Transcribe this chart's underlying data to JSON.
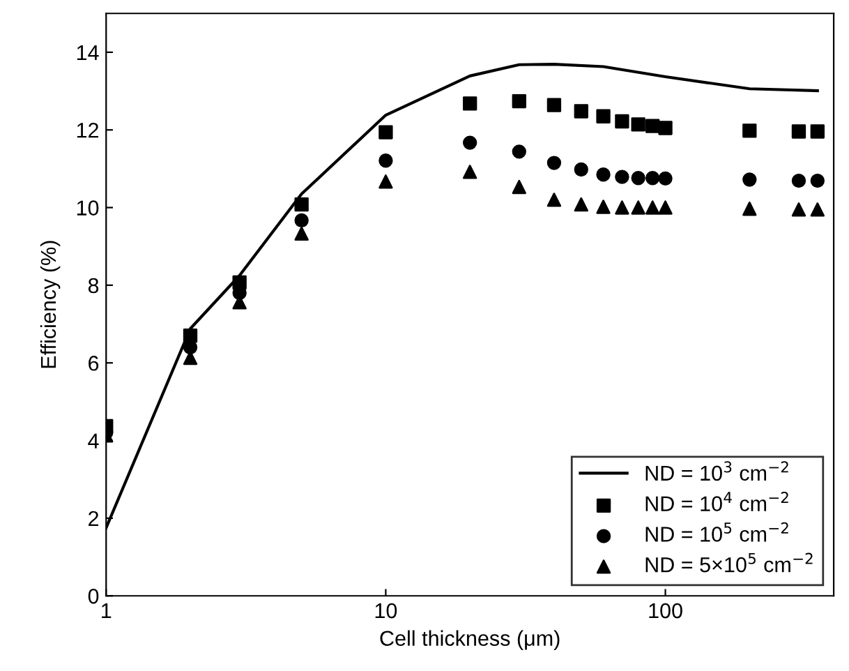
{
  "chart_data": {
    "type": "scatter",
    "xlabel": "Cell thickness (μm)",
    "ylabel": "Efficiency (%)",
    "log": "x",
    "xlim": [
      1,
      400
    ],
    "xticks": [
      1,
      10,
      100
    ],
    "ylim": [
      0,
      15
    ],
    "yticks": [
      0,
      2,
      4,
      6,
      8,
      10,
      12,
      14
    ],
    "grid": false,
    "legend": "bottom right",
    "series": [
      {
        "name": "ND = 10$^{3}$ cm$^{−2}$",
        "type": "line",
        "marker": "none",
        "line_style": "solid",
        "color": "#000000",
        "x": [
          1,
          2,
          3,
          5,
          10,
          20,
          30,
          40,
          60,
          100,
          200,
          350
        ],
        "values": [
          1.75,
          6.88,
          8.25,
          10.35,
          12.38,
          13.39,
          13.68,
          13.69,
          13.63,
          13.37,
          13.06,
          13.01
        ]
      },
      {
        "name": "ND = 10$^{4}$ cm$^{−2}$",
        "marker": "square",
        "color": "#000000",
        "x": [
          1,
          2,
          3,
          5,
          10,
          20,
          30,
          40,
          50,
          60,
          70,
          80,
          90,
          100,
          200,
          300,
          350
        ],
        "values": [
          4.37,
          6.7,
          8.07,
          10.08,
          11.94,
          12.68,
          12.74,
          12.64,
          12.48,
          12.35,
          12.22,
          12.14,
          12.1,
          12.05,
          11.98,
          11.96,
          11.96
        ]
      },
      {
        "name": "ND = 10$^{5}$ cm$^{−2}$",
        "marker": "circle",
        "color": "#000000",
        "x": [
          1,
          2,
          3,
          5,
          10,
          20,
          30,
          40,
          50,
          60,
          70,
          80,
          90,
          100,
          200,
          300,
          350
        ],
        "values": [
          4.2,
          6.4,
          7.8,
          9.67,
          11.21,
          11.67,
          11.44,
          11.15,
          10.98,
          10.85,
          10.79,
          10.76,
          10.76,
          10.75,
          10.72,
          10.69,
          10.69
        ]
      },
      {
        "name": "ND = 5×10$^{5}$ cm$^{−2}$",
        "marker": "triangle",
        "color": "#000000",
        "x": [
          1,
          2,
          3,
          5,
          10,
          20,
          30,
          40,
          50,
          60,
          70,
          80,
          90,
          100,
          200,
          300,
          350
        ],
        "values": [
          4.13,
          6.13,
          7.56,
          9.33,
          10.67,
          10.92,
          10.53,
          10.2,
          10.08,
          10.02,
          10.0,
          10.0,
          10.0,
          10.0,
          9.97,
          9.95,
          9.95
        ]
      }
    ]
  }
}
